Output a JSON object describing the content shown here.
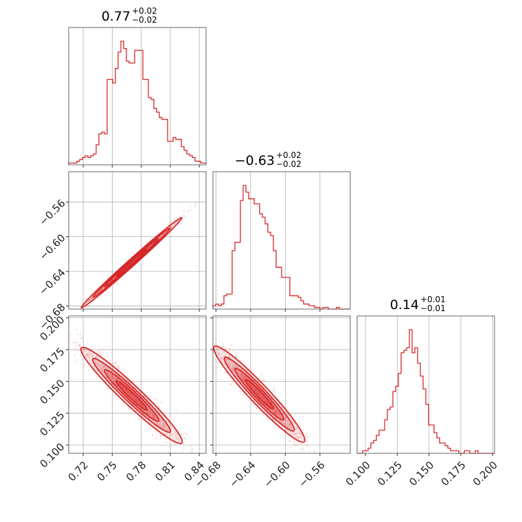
{
  "colors": {
    "accent": "#d62728",
    "grid": "#b0b0b0",
    "frame": "#555555"
  },
  "titles": [
    {
      "value": "0.77",
      "plus": "+0.02",
      "minus": "−0.02"
    },
    {
      "value": "−0.63",
      "plus": "+0.02",
      "minus": "−0.02"
    },
    {
      "value": "0.14",
      "plus": "+0.01",
      "minus": "−0.01"
    }
  ],
  "chart_data": {
    "type": "corner",
    "grid": true,
    "params": [
      {
        "range": [
          0.705,
          0.847
        ],
        "ticks": [
          0.72,
          0.75,
          0.78,
          0.81,
          0.84
        ],
        "tick_labels": [
          "0.72",
          "0.75",
          "0.78",
          "0.81",
          "0.84"
        ]
      },
      {
        "range": [
          -0.6835,
          -0.525
        ],
        "ticks": [
          -0.68,
          -0.64,
          -0.6,
          -0.56
        ],
        "tick_labels": [
          "−0.68",
          "−0.64",
          "−0.60",
          "−0.56"
        ]
      },
      {
        "range": [
          0.0935,
          0.2015
        ],
        "ticks": [
          0.1,
          0.125,
          0.15,
          0.175,
          0.2
        ],
        "tick_labels": [
          "0.100",
          "0.125",
          "0.150",
          "0.175",
          "0.200"
        ]
      }
    ],
    "histograms": [
      {
        "edges_start": 0.705,
        "bin_width": 0.00284,
        "counts": [
          1,
          1,
          1,
          2,
          3,
          4,
          5,
          4,
          5,
          6,
          11,
          17,
          18,
          17,
          47,
          47,
          45,
          53,
          62,
          68,
          64,
          57,
          56,
          56,
          63,
          63,
          63,
          47,
          47,
          37,
          36,
          31,
          29,
          26,
          25,
          25,
          13,
          13,
          15,
          14,
          14,
          10,
          8,
          6,
          5,
          4,
          2,
          2,
          1,
          1
        ]
      },
      {
        "edges_start": -0.6835,
        "bin_width": 0.00317,
        "counts": [
          2,
          3,
          2,
          3,
          8,
          9,
          9,
          35,
          40,
          40,
          65,
          74,
          70,
          66,
          66,
          63,
          63,
          57,
          55,
          51,
          46,
          44,
          35,
          25,
          25,
          19,
          19,
          19,
          8,
          8,
          8,
          7,
          5,
          3,
          3,
          2,
          2,
          1,
          1,
          0,
          1,
          1,
          0,
          0,
          0,
          1,
          0,
          0,
          0,
          0
        ]
      },
      {
        "edges_start": 0.0935,
        "bin_width": 0.00216,
        "counts": [
          0,
          0,
          1,
          1,
          2,
          4,
          5,
          7,
          9,
          9,
          13,
          17,
          18,
          24,
          26,
          31,
          39,
          40,
          41,
          48,
          39,
          41,
          35,
          30,
          25,
          19,
          11,
          11,
          8,
          6,
          4,
          4,
          3,
          2,
          1,
          1,
          1,
          0,
          0,
          1,
          1,
          0,
          0,
          1,
          0,
          0,
          0,
          0,
          0,
          0
        ]
      }
    ],
    "pairs": [
      {
        "x_param": 0,
        "y_param": 1,
        "slope": 1.0,
        "intercept": 0.0,
        "mean_x": 0.77,
        "std_x": 0.02,
        "scatter": 0.0025
      },
      {
        "x_param": 0,
        "y_param": 2,
        "slope": -0.72,
        "intercept": 0.0,
        "mean_x": 0.77,
        "std_x": 0.02,
        "scatter": 0.006
      },
      {
        "x_param": 1,
        "y_param": 2,
        "slope": -0.72,
        "intercept": 0.0,
        "mean_x": -0.63,
        "std_x": 0.02,
        "scatter": 0.006
      }
    ]
  }
}
